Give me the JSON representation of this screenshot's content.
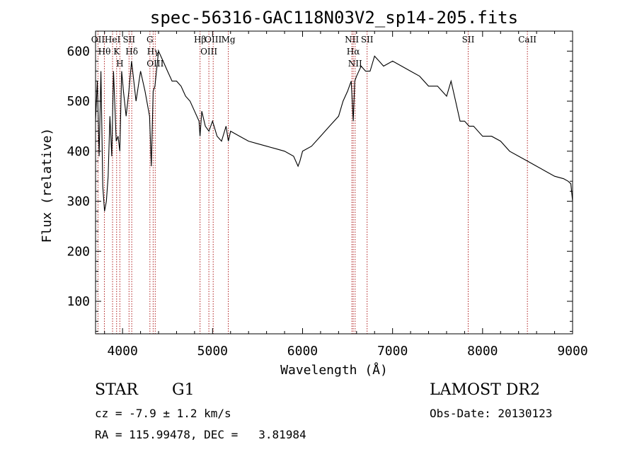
{
  "chart_data": {
    "type": "line",
    "title": "spec-56316-GAC118N03V2_sp14-205.fits",
    "xlabel": "Wavelength (Å)",
    "ylabel": "Flux (relative)",
    "xlim": [
      3700,
      9000
    ],
    "ylim": [
      35,
      640
    ],
    "xticks": [
      4000,
      5000,
      6000,
      7000,
      8000,
      9000
    ],
    "yticks": [
      100,
      200,
      300,
      400,
      500,
      600
    ],
    "grid": false,
    "series": [
      {
        "x": [
          3700,
          3720,
          3740,
          3760,
          3780,
          3800,
          3820,
          3840,
          3860,
          3880,
          3900,
          3930,
          3950,
          3970,
          3990,
          4010,
          4040,
          4070,
          4100,
          4150,
          4200,
          4250,
          4300,
          4320,
          4340,
          4360,
          4400,
          4450,
          4500,
          4550,
          4600,
          4650,
          4700,
          4750,
          4800,
          4850,
          4861,
          4880,
          4920,
          4960,
          5000,
          5050,
          5100,
          5150,
          5175,
          5200,
          5300,
          5400,
          5500,
          5600,
          5700,
          5800,
          5900,
          5950,
          5970,
          6000,
          6100,
          6200,
          6300,
          6400,
          6450,
          6500,
          6540,
          6563,
          6580,
          6600,
          6650,
          6700,
          6750,
          6800,
          6850,
          6900,
          7000,
          7100,
          7200,
          7300,
          7400,
          7500,
          7600,
          7650,
          7700,
          7750,
          7800,
          7850,
          7900,
          8000,
          8100,
          8200,
          8300,
          8400,
          8500,
          8600,
          8700,
          8800,
          8900,
          8950,
          8980,
          9000
        ],
        "values": [
          460,
          540,
          390,
          560,
          330,
          280,
          300,
          350,
          470,
          390,
          560,
          420,
          430,
          400,
          560,
          520,
          470,
          520,
          580,
          500,
          560,
          520,
          470,
          370,
          520,
          530,
          600,
          580,
          560,
          540,
          540,
          530,
          510,
          500,
          480,
          460,
          430,
          480,
          450,
          440,
          460,
          430,
          420,
          450,
          420,
          440,
          430,
          420,
          415,
          410,
          405,
          400,
          390,
          370,
          380,
          400,
          410,
          430,
          450,
          470,
          500,
          520,
          540,
          460,
          540,
          550,
          570,
          560,
          560,
          590,
          580,
          570,
          580,
          570,
          560,
          550,
          530,
          530,
          510,
          540,
          500,
          460,
          460,
          450,
          450,
          430,
          430,
          420,
          400,
          390,
          380,
          370,
          360,
          350,
          345,
          340,
          335,
          300
        ]
      }
    ],
    "lines": [
      {
        "x": 3727,
        "label": "OII"
      },
      {
        "x": 3798,
        "label": "Hθ"
      },
      {
        "x": 3889,
        "label": "HeI"
      },
      {
        "x": 3934,
        "label": "K"
      },
      {
        "x": 3970,
        "label": "H"
      },
      {
        "x": 4072,
        "label": "SII"
      },
      {
        "x": 4102,
        "label": "Hδ"
      },
      {
        "x": 4304,
        "label": "G"
      },
      {
        "x": 4340,
        "label": "Hγ"
      },
      {
        "x": 4363,
        "label": "OIII"
      },
      {
        "x": 4861,
        "label": "Hβ"
      },
      {
        "x": 4959,
        "label": "OIII"
      },
      {
        "x": 5007,
        "label": "OIII"
      },
      {
        "x": 5175,
        "label": "Mg"
      },
      {
        "x": 6548,
        "label": "NII"
      },
      {
        "x": 6563,
        "label": "Hα"
      },
      {
        "x": 6584,
        "label": "NII"
      },
      {
        "x": 6717,
        "label": "SII"
      },
      {
        "x": 7840,
        "label": "SII"
      },
      {
        "x": 8498,
        "label": "CaII"
      }
    ]
  },
  "info": {
    "class": "STAR",
    "subclass": "G1",
    "cz": "cz = -7.9 ± 1.2 km/s",
    "coords": "RA = 115.99478, DEC =   3.81984",
    "survey": "LAMOST DR2",
    "obs_date": "Obs-Date: 20130123"
  }
}
